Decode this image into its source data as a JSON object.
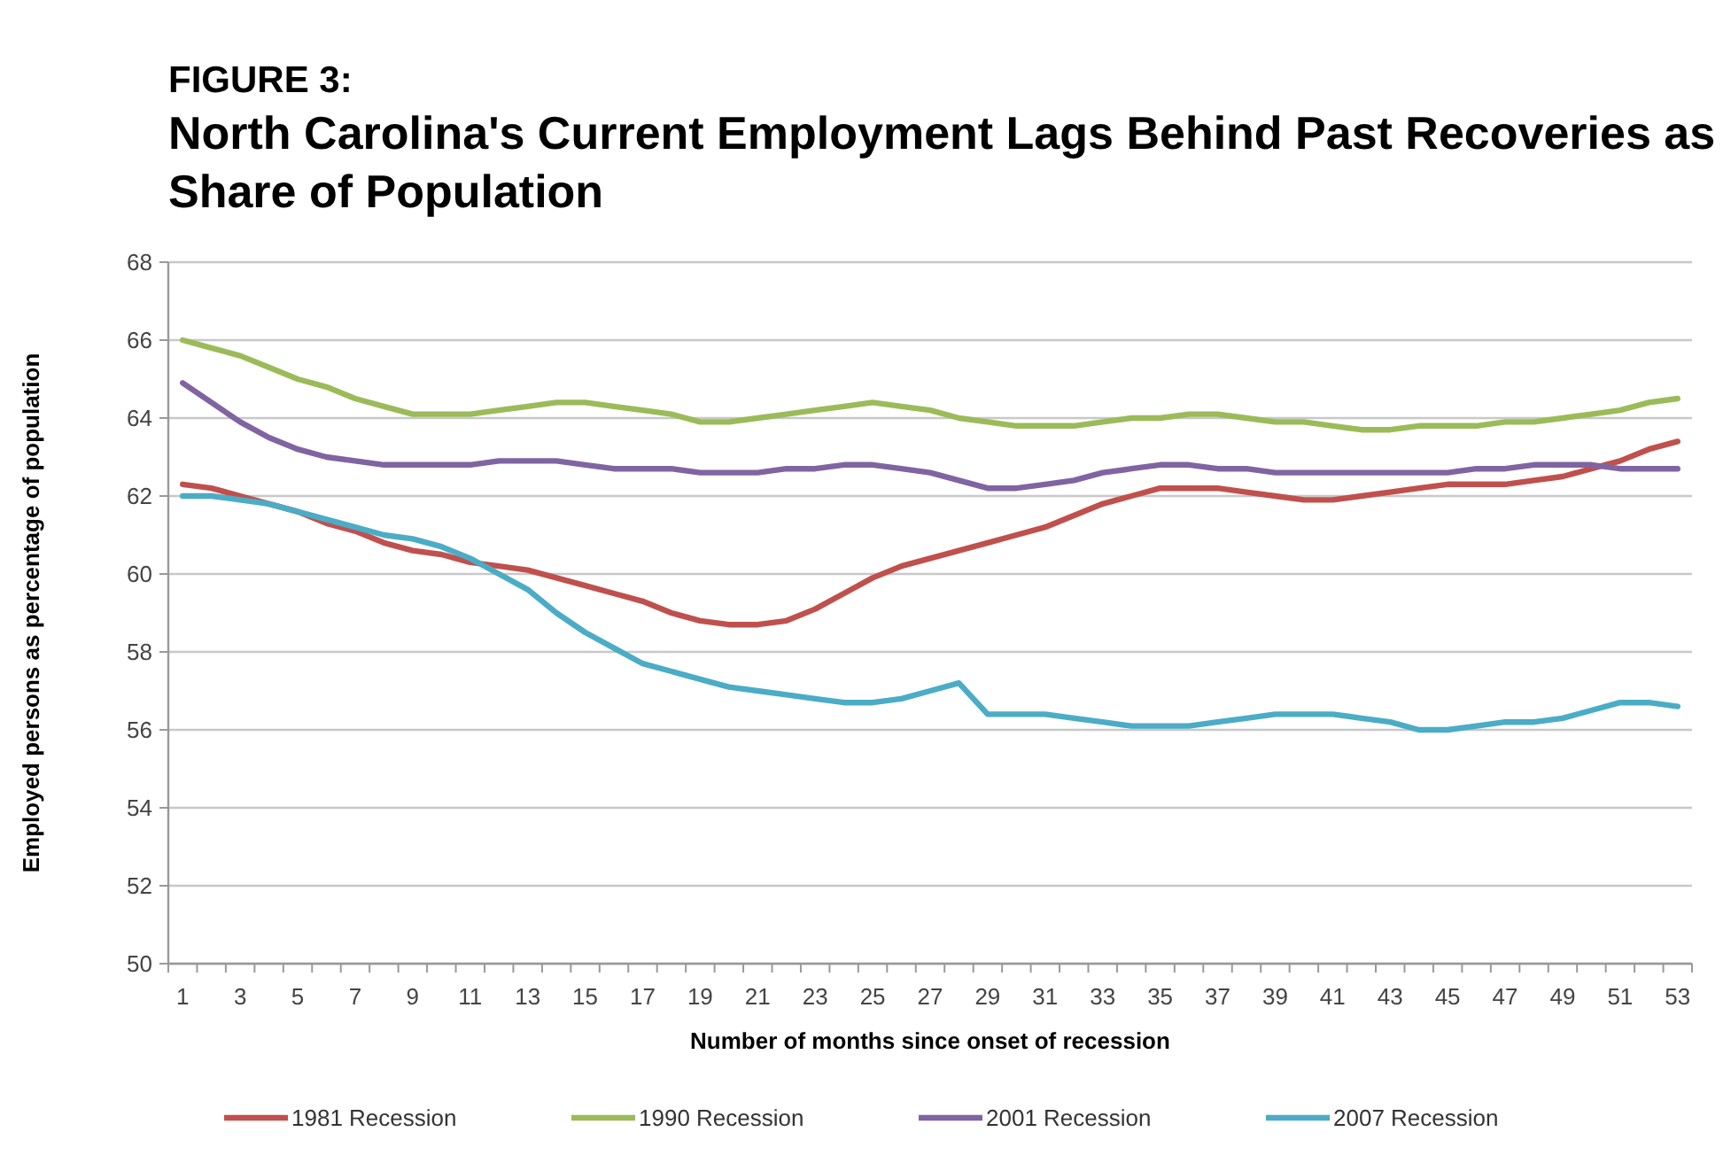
{
  "chart_data": {
    "type": "line",
    "title": "FIGURE 3:",
    "subtitle": "North Carolina's Current Employment Lags Behind Past Recoveries as Share of Population",
    "xlabel": "Number of months since onset of recession",
    "ylabel": "Employed persons as percentage of population",
    "x": [
      1,
      2,
      3,
      4,
      5,
      6,
      7,
      8,
      9,
      10,
      11,
      12,
      13,
      14,
      15,
      16,
      17,
      18,
      19,
      20,
      21,
      22,
      23,
      24,
      25,
      26,
      27,
      28,
      29,
      30,
      31,
      32,
      33,
      34,
      35,
      36,
      37,
      38,
      39,
      40,
      41,
      42,
      43,
      44,
      45,
      46,
      47,
      48,
      49,
      50,
      51,
      52,
      53
    ],
    "xlim": [
      0.5,
      53.5
    ],
    "xticks": [
      1,
      3,
      5,
      7,
      9,
      11,
      13,
      15,
      17,
      19,
      21,
      23,
      25,
      27,
      29,
      31,
      33,
      35,
      37,
      39,
      41,
      43,
      45,
      47,
      49,
      51,
      53
    ],
    "ylim": [
      50,
      68
    ],
    "yticks": [
      50,
      52,
      54,
      56,
      58,
      60,
      62,
      64,
      66,
      68
    ],
    "grid": "y",
    "legend": "bottom",
    "marker": "none",
    "line_style": "solid",
    "series": [
      {
        "name": "1981 Recession",
        "color": "#c0504d",
        "values": [
          62.3,
          62.2,
          62.0,
          61.8,
          61.6,
          61.3,
          61.1,
          60.8,
          60.6,
          60.5,
          60.3,
          60.2,
          60.1,
          59.9,
          59.7,
          59.5,
          59.3,
          59.0,
          58.8,
          58.7,
          58.7,
          58.8,
          59.1,
          59.5,
          59.9,
          60.2,
          60.4,
          60.6,
          60.8,
          61.0,
          61.2,
          61.5,
          61.8,
          62.0,
          62.2,
          62.2,
          62.2,
          62.1,
          62.0,
          61.9,
          61.9,
          62.0,
          62.1,
          62.2,
          62.3,
          62.3,
          62.3,
          62.4,
          62.5,
          62.7,
          62.9,
          63.2,
          63.4
        ]
      },
      {
        "name": "1990 Recession",
        "color": "#9bbb59",
        "values": [
          66.0,
          65.8,
          65.6,
          65.3,
          65.0,
          64.8,
          64.5,
          64.3,
          64.1,
          64.1,
          64.1,
          64.2,
          64.3,
          64.4,
          64.4,
          64.3,
          64.2,
          64.1,
          63.9,
          63.9,
          64.0,
          64.1,
          64.2,
          64.3,
          64.4,
          64.3,
          64.2,
          64.0,
          63.9,
          63.8,
          63.8,
          63.8,
          63.9,
          64.0,
          64.0,
          64.1,
          64.1,
          64.0,
          63.9,
          63.9,
          63.8,
          63.7,
          63.7,
          63.8,
          63.8,
          63.8,
          63.9,
          63.9,
          64.0,
          64.1,
          64.2,
          64.4,
          64.5
        ]
      },
      {
        "name": "2001 Recession",
        "color": "#8064a2",
        "values": [
          64.9,
          64.4,
          63.9,
          63.5,
          63.2,
          63.0,
          62.9,
          62.8,
          62.8,
          62.8,
          62.8,
          62.9,
          62.9,
          62.9,
          62.8,
          62.7,
          62.7,
          62.7,
          62.6,
          62.6,
          62.6,
          62.7,
          62.7,
          62.8,
          62.8,
          62.7,
          62.6,
          62.4,
          62.2,
          62.2,
          62.3,
          62.4,
          62.6,
          62.7,
          62.8,
          62.8,
          62.7,
          62.7,
          62.6,
          62.6,
          62.6,
          62.6,
          62.6,
          62.6,
          62.6,
          62.7,
          62.7,
          62.8,
          62.8,
          62.8,
          62.7,
          62.7,
          62.7
        ]
      },
      {
        "name": "2007 Recession",
        "color": "#4bacc6",
        "values": [
          62.0,
          62.0,
          61.9,
          61.8,
          61.6,
          61.4,
          61.2,
          61.0,
          60.9,
          60.7,
          60.4,
          60.0,
          59.6,
          59.0,
          58.5,
          58.1,
          57.7,
          57.5,
          57.3,
          57.1,
          57.0,
          56.9,
          56.8,
          56.7,
          56.7,
          56.8,
          57.0,
          57.2,
          56.4,
          56.4,
          56.4,
          56.3,
          56.2,
          56.1,
          56.1,
          56.1,
          56.2,
          56.3,
          56.4,
          56.4,
          56.4,
          56.3,
          56.2,
          56.0,
          56.0,
          56.1,
          56.2,
          56.2,
          56.3,
          56.5,
          56.7,
          56.7,
          56.6
        ]
      }
    ]
  }
}
